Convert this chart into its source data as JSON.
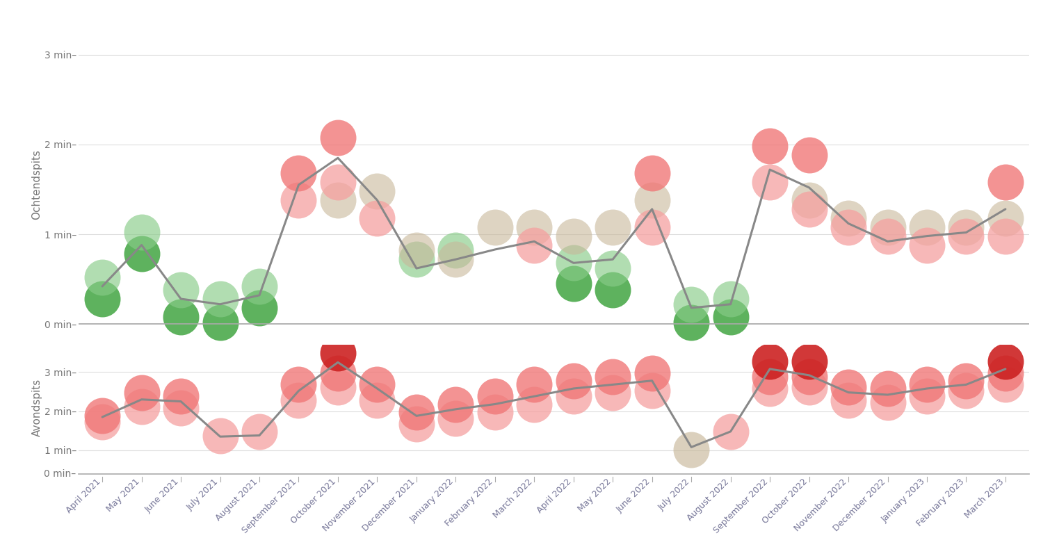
{
  "categories": [
    "April 2021",
    "May 2021",
    "June 2021",
    "July 2021",
    "August 2021",
    "September 2021",
    "October 2021",
    "November 2021",
    "December 2021",
    "January 2022",
    "February 2022",
    "March 2022",
    "April 2022",
    "May 2022",
    "June 2022",
    "July 2022",
    "August 2022",
    "September 2022",
    "October 2022",
    "November 2022",
    "December 2022",
    "January 2023",
    "February 2023",
    "March 2023"
  ],
  "ochtend_line": [
    0.42,
    0.88,
    0.28,
    0.22,
    0.32,
    1.55,
    1.85,
    1.38,
    0.62,
    0.72,
    0.83,
    0.92,
    0.68,
    0.72,
    1.28,
    0.18,
    0.22,
    1.72,
    1.52,
    1.12,
    0.92,
    0.98,
    1.02,
    1.28
  ],
  "avond_line": [
    1.85,
    2.3,
    2.25,
    1.35,
    1.38,
    2.52,
    3.25,
    2.58,
    1.88,
    2.05,
    2.18,
    2.38,
    2.58,
    2.68,
    2.78,
    1.08,
    1.48,
    3.08,
    2.92,
    2.48,
    2.42,
    2.58,
    2.68,
    3.08
  ],
  "och_dot_layers": [
    {
      "vals": [
        0.28,
        0.78,
        0.08,
        0.02,
        0.18,
        null,
        null,
        null,
        null,
        null,
        null,
        null,
        0.45,
        0.38,
        null,
        0.02,
        0.08,
        null,
        null,
        null,
        null,
        null,
        null,
        null
      ],
      "color": "#4caa4c",
      "alpha": 0.9,
      "size": 1400
    },
    {
      "vals": [
        0.52,
        1.02,
        0.38,
        0.28,
        0.42,
        null,
        null,
        null,
        0.72,
        0.82,
        null,
        null,
        0.68,
        0.62,
        null,
        0.22,
        0.28,
        null,
        null,
        null,
        null,
        null,
        null,
        null
      ],
      "color": "#88cc88",
      "alpha": 0.65,
      "size": 1400
    },
    {
      "vals": [
        null,
        null,
        null,
        null,
        null,
        null,
        1.38,
        1.48,
        0.82,
        0.72,
        1.08,
        1.08,
        0.98,
        1.08,
        1.38,
        null,
        null,
        null,
        1.38,
        1.18,
        1.08,
        1.08,
        1.08,
        1.18
      ],
      "color": "#c8b89a",
      "alpha": 0.6,
      "size": 1400
    },
    {
      "vals": [
        null,
        null,
        null,
        null,
        null,
        1.38,
        1.58,
        1.18,
        null,
        null,
        null,
        0.88,
        null,
        null,
        1.08,
        null,
        null,
        1.58,
        1.28,
        1.08,
        0.98,
        0.88,
        0.98,
        0.98
      ],
      "color": "#f5a0a0",
      "alpha": 0.75,
      "size": 1400
    },
    {
      "vals": [
        null,
        null,
        null,
        null,
        null,
        1.68,
        2.08,
        null,
        null,
        null,
        null,
        null,
        null,
        null,
        1.68,
        null,
        null,
        1.98,
        1.88,
        null,
        null,
        null,
        null,
        1.58
      ],
      "color": "#f07878",
      "alpha": 0.8,
      "size": 1400
    }
  ],
  "av_dot_layers": [
    {
      "vals": [
        null,
        null,
        null,
        null,
        null,
        null,
        null,
        null,
        null,
        null,
        null,
        null,
        null,
        null,
        null,
        1.02,
        null,
        null,
        null,
        null,
        null,
        null,
        null,
        null
      ],
      "color": "#c8b89a",
      "alpha": 0.65,
      "size": 1400
    },
    {
      "vals": [
        null,
        null,
        null,
        1.38,
        1.48,
        null,
        null,
        null,
        null,
        null,
        null,
        null,
        null,
        null,
        null,
        null,
        1.48,
        null,
        null,
        null,
        null,
        null,
        null,
        null
      ],
      "color": "#f5a0a0",
      "alpha": 0.75,
      "size": 1400
    },
    {
      "vals": [
        1.72,
        2.12,
        2.08,
        null,
        null,
        2.28,
        2.62,
        2.28,
        1.68,
        1.82,
        1.98,
        2.18,
        2.38,
        2.48,
        2.52,
        null,
        null,
        2.58,
        2.62,
        2.28,
        2.22,
        2.38,
        2.52,
        2.68
      ],
      "color": "#f5a0a0",
      "alpha": 0.75,
      "size": 1400
    },
    {
      "vals": [
        1.88,
        2.48,
        2.38,
        null,
        null,
        2.68,
        2.98,
        2.68,
        1.98,
        2.18,
        2.38,
        2.68,
        2.78,
        2.88,
        2.98,
        null,
        null,
        2.88,
        2.88,
        2.62,
        2.58,
        2.68,
        2.78,
        2.98
      ],
      "color": "#f07878",
      "alpha": 0.8,
      "size": 1400
    },
    {
      "vals": [
        null,
        null,
        null,
        null,
        null,
        null,
        3.48,
        null,
        null,
        null,
        null,
        null,
        null,
        null,
        null,
        null,
        null,
        3.28,
        3.28,
        null,
        null,
        null,
        null,
        3.28
      ],
      "color": "#cc2222",
      "alpha": 0.9,
      "size": 1400
    }
  ],
  "ochtend_ylabel": "Ochtendspits",
  "avond_ylabel": "Avondspits",
  "line_color": "#888888",
  "line_width": 2.2,
  "bg_color": "#ffffff",
  "tick_color": "#777777",
  "grid_color": "#dddddd",
  "label_color": "#777799",
  "ytick_fontsize": 10,
  "ylabel_fontsize": 11,
  "xlabel_fontsize": 9,
  "och_ylim": [
    -0.2,
    3.3
  ],
  "av_ylim": [
    0.5,
    3.7
  ],
  "yticks_och": [
    0,
    1,
    2,
    3
  ],
  "yticks_av": [
    1,
    2,
    3
  ]
}
